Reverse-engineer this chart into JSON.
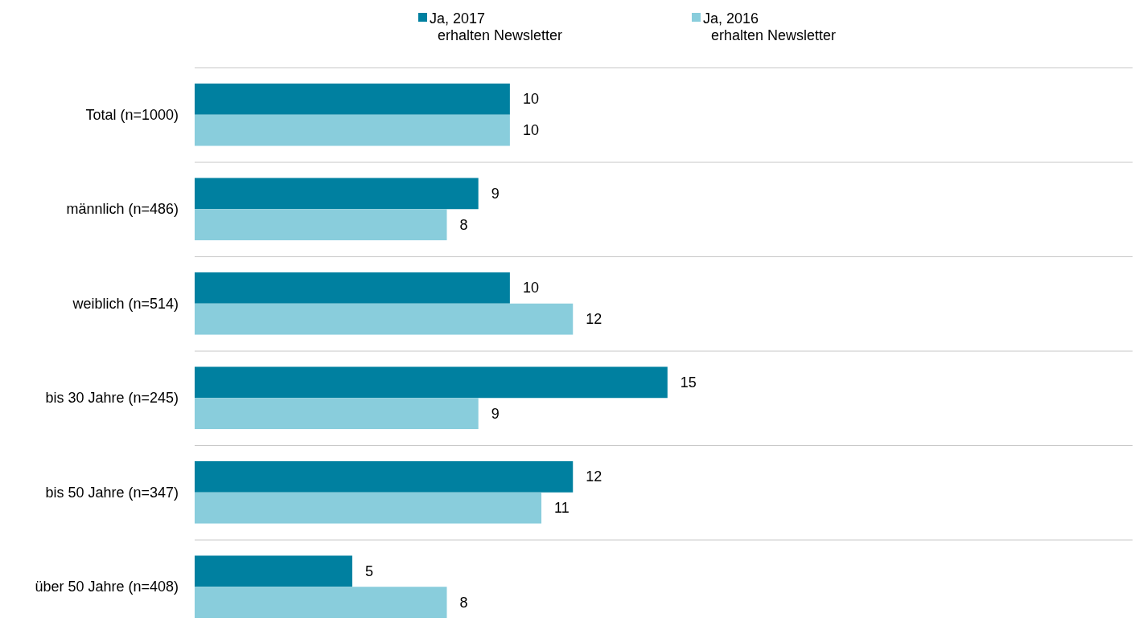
{
  "chart_data": {
    "type": "bar",
    "orientation": "horizontal",
    "categories": [
      "Total (n=1000)",
      "männlich (n=486)",
      "weiblich (n=514)",
      "bis 30 Jahre (n=245)",
      "bis 50 Jahre (n=347)",
      "über 50 Jahre (n=408)"
    ],
    "series": [
      {
        "name": "Ja, 2017\nerhalten Newsletter",
        "color": "#0080a0",
        "values": [
          10,
          9,
          10,
          15,
          12,
          5
        ]
      },
      {
        "name": "Ja, 2016\nerhalten Newsletter",
        "color": "#89cddc",
        "values": [
          10,
          8,
          12,
          9,
          11,
          8
        ]
      }
    ],
    "data_labels": true,
    "grid": true,
    "legend": "top",
    "tick_labels": "y"
  }
}
